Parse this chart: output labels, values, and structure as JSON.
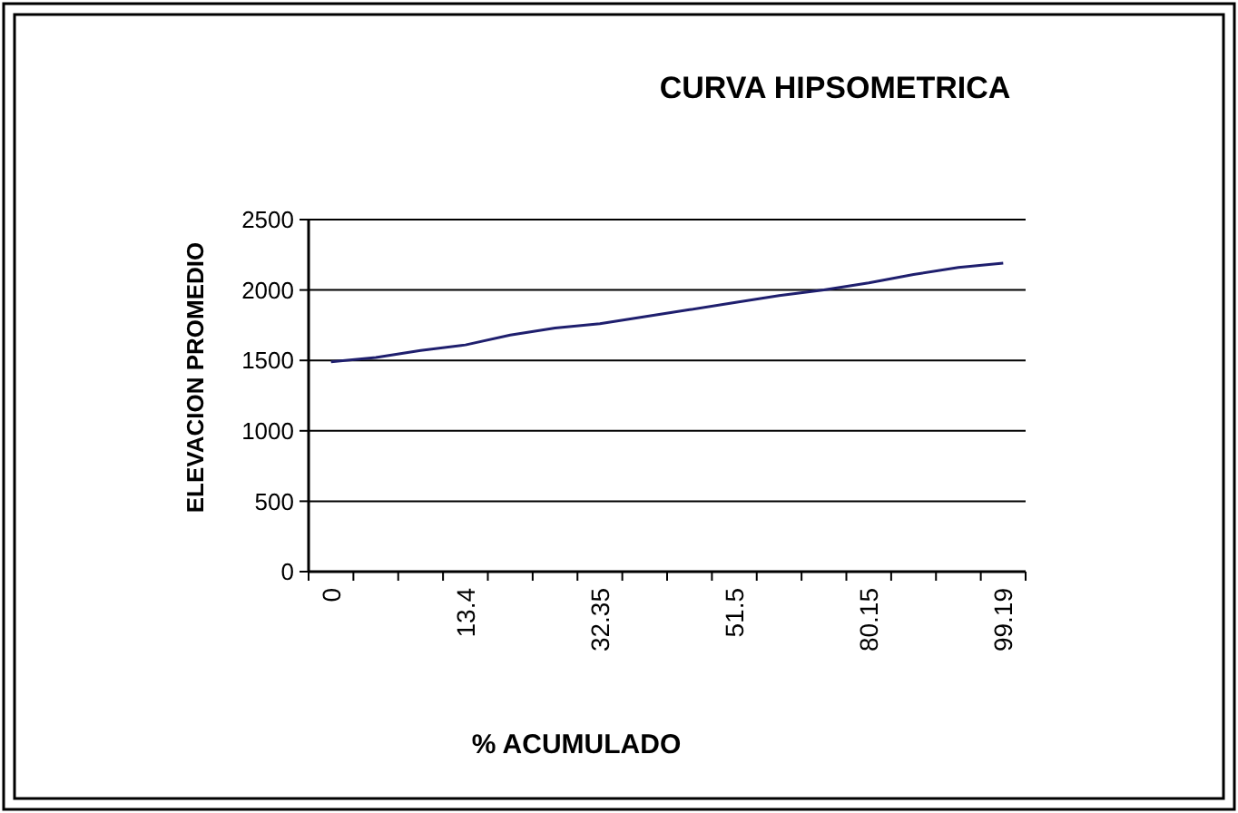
{
  "chart_data": {
    "type": "line",
    "title": "CURVA HIPSOMETRICA",
    "xlabel": "% ACUMULADO",
    "ylabel": "ELEVACION PROMEDIO",
    "categories": [
      "0",
      null,
      null,
      "13.4",
      null,
      null,
      "32.35",
      null,
      null,
      "51.5",
      null,
      null,
      "80.15",
      null,
      null,
      "99.19"
    ],
    "series": [
      {
        "color": "#1f1f6e",
        "values": [
          1490,
          1520,
          1570,
          1610,
          1680,
          1730,
          1760,
          1810,
          1860,
          1910,
          1960,
          2000,
          2050,
          2110,
          2160,
          2190
        ]
      }
    ],
    "ylim": [
      0,
      2500
    ],
    "yticks": [
      0,
      500,
      1000,
      1500,
      2000,
      2500
    ],
    "grid": "y",
    "marker": "none",
    "line_style": "solid"
  }
}
